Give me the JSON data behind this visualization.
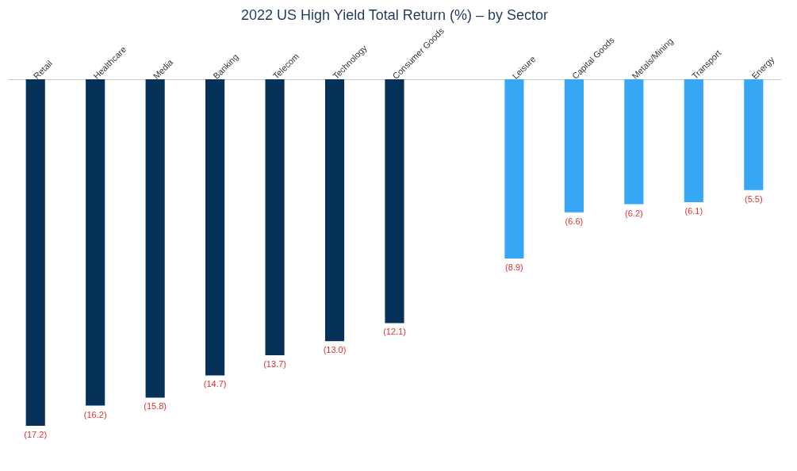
{
  "chart_data": {
    "type": "bar",
    "title": "2022 US High Yield Total Return (%) – by Sector",
    "categories": [
      "Retail",
      "Healthcare",
      "Media",
      "Banking",
      "Telecom",
      "Technology",
      "Consumer Goods",
      null,
      "Leisure",
      "Capital Goods",
      "Metals/Mining",
      "Transport",
      "Energy"
    ],
    "series": [
      {
        "color": "#06325a",
        "values": [
          -17.2,
          -16.2,
          -15.8,
          -14.7,
          -13.7,
          -13.0,
          -12.1,
          null,
          null,
          null,
          null,
          null,
          null
        ],
        "value_labels": [
          "(17.2)",
          "(16.2)",
          "(15.8)",
          "(14.7)",
          "(13.7)",
          "(13.0)",
          "(12.1)",
          null,
          null,
          null,
          null,
          null,
          null
        ]
      },
      {
        "color": "#37a7f5",
        "values": [
          null,
          null,
          null,
          null,
          null,
          null,
          null,
          null,
          -8.9,
          -6.6,
          -6.2,
          -6.1,
          -5.5
        ],
        "value_labels": [
          null,
          null,
          null,
          null,
          null,
          null,
          null,
          null,
          "(8.9)",
          "(6.6)",
          "(6.2)",
          "(6.1)",
          "(5.5)"
        ]
      }
    ],
    "tick_labels": "x",
    "grid": false,
    "legend": false
  }
}
